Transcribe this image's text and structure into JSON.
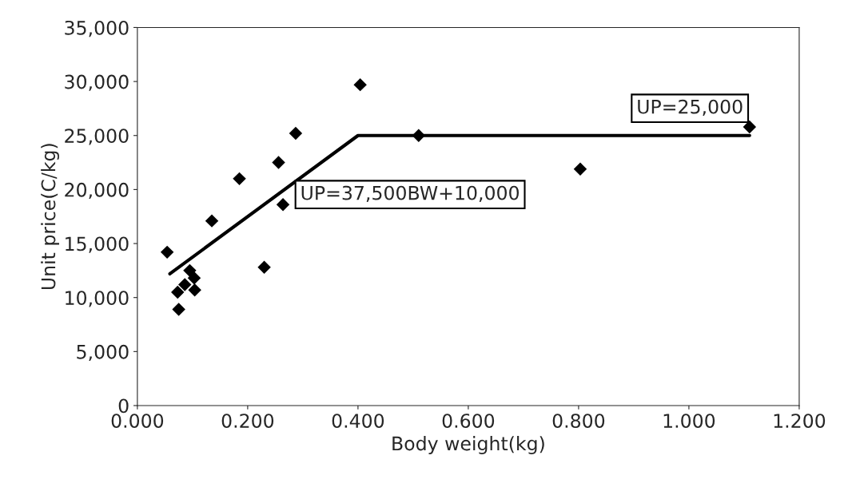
{
  "chart_data": {
    "type": "scatter",
    "xlabel": "Body weight(kg)",
    "ylabel": "Unit price(C/kg)",
    "xlim": [
      0,
      1.2
    ],
    "ylim": [
      0,
      35000
    ],
    "xticks": [
      {
        "value": 0,
        "label": "0.000"
      },
      {
        "value": 0.2,
        "label": "0.200"
      },
      {
        "value": 0.4,
        "label": "0.400"
      },
      {
        "value": 0.6,
        "label": "0.600"
      },
      {
        "value": 0.8,
        "label": "0.800"
      },
      {
        "value": 1.0,
        "label": "1.000"
      },
      {
        "value": 1.2,
        "label": "1.200"
      }
    ],
    "yticks": [
      {
        "value": 0,
        "label": "0"
      },
      {
        "value": 5000,
        "label": "5,000"
      },
      {
        "value": 10000,
        "label": "10,000"
      },
      {
        "value": 15000,
        "label": "15,000"
      },
      {
        "value": 20000,
        "label": "20,000"
      },
      {
        "value": 25000,
        "label": "25,000"
      },
      {
        "value": 30000,
        "label": "30,000"
      },
      {
        "value": 35000,
        "label": "35,000"
      }
    ],
    "grid": false,
    "legend": false,
    "series": [
      {
        "color": "#000000",
        "marker": "diamond",
        "x": [
          0.404,
          0.287,
          0.256,
          0.185,
          0.264,
          0.135,
          0.054,
          0.23,
          0.095,
          0.103,
          0.086,
          0.073,
          0.104,
          0.075,
          0.51,
          0.803,
          1.11
        ],
        "values": [
          29700,
          25200,
          22500,
          21000,
          18600,
          17100,
          14200,
          12800,
          12500,
          11800,
          11200,
          10500,
          10700,
          8900,
          25000,
          21900,
          25800
        ]
      },
      {
        "type": "line",
        "color": "#000000",
        "marker": "none",
        "line_style": "solid",
        "x": [
          0.059,
          0.4,
          1.11
        ],
        "values": [
          12200,
          25000,
          25000
        ]
      }
    ],
    "annotations": [
      "UP=37,500BW+10,000",
      "UP=25,000"
    ]
  }
}
